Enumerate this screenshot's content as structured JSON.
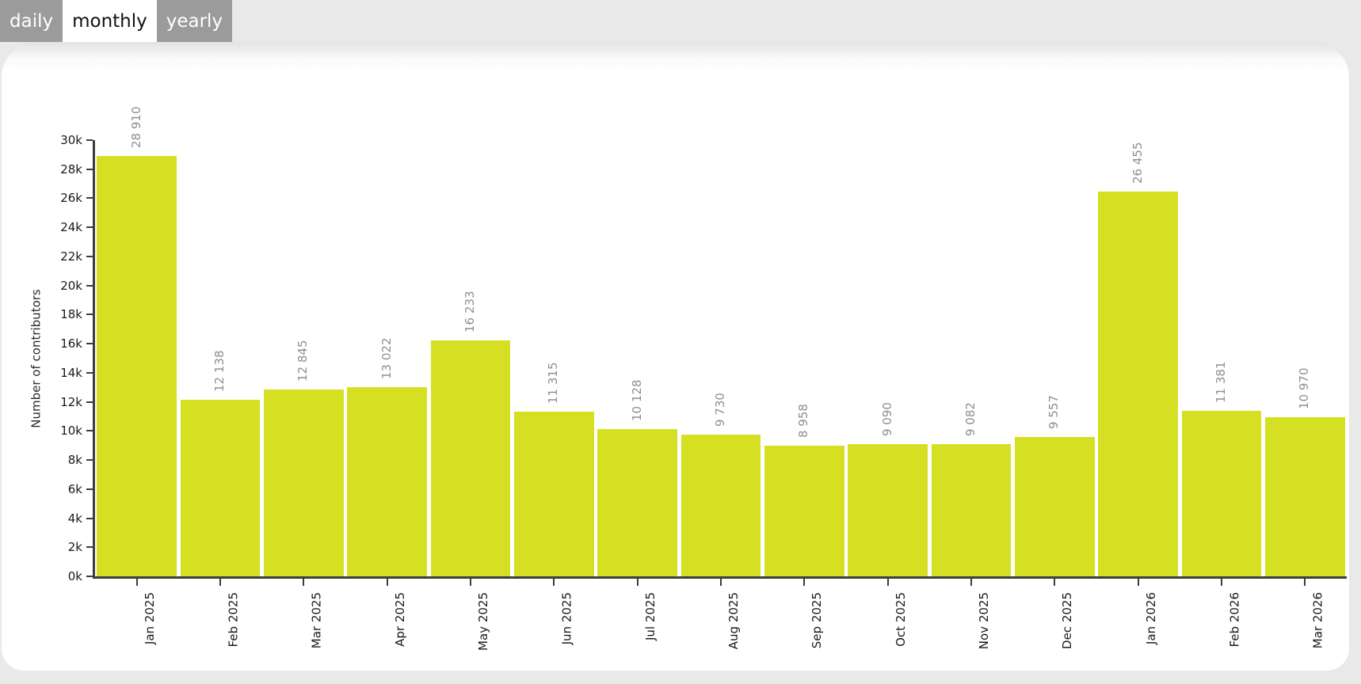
{
  "tabs": {
    "items": [
      {
        "label": "daily",
        "active": false
      },
      {
        "label": "monthly",
        "active": true
      },
      {
        "label": "yearly",
        "active": false
      }
    ]
  },
  "chart_data": {
    "type": "bar",
    "title": "",
    "xlabel": "",
    "ylabel": "Number of contributors",
    "ylim": [
      0,
      30000
    ],
    "y_tick_step": 2000,
    "y_tick_labels": [
      "0k",
      "2k",
      "4k",
      "6k",
      "8k",
      "10k",
      "12k",
      "14k",
      "16k",
      "18k",
      "20k",
      "22k",
      "24k",
      "26k",
      "28k",
      "30k"
    ],
    "categories": [
      "Jan 2025",
      "Feb 2025",
      "Mar 2025",
      "Apr 2025",
      "May 2025",
      "Jun 2025",
      "Jul 2025",
      "Aug 2025",
      "Sep 2025",
      "Oct 2025",
      "Nov 2025",
      "Dec 2025",
      "Jan 2026",
      "Feb 2026",
      "Mar 2026"
    ],
    "values": [
      28910,
      12138,
      12845,
      13022,
      16233,
      11315,
      10128,
      9730,
      8958,
      9090,
      9082,
      9557,
      26455,
      11381,
      10970
    ],
    "value_labels": [
      "28 910",
      "12 138",
      "12 845",
      "13 022",
      "16 233",
      "11 315",
      "10 128",
      "9 730",
      "8 958",
      "9 090",
      "9 082",
      "9 557",
      "26 455",
      "11 381",
      "10 970"
    ],
    "grid": false,
    "legend": null,
    "bar_color": "#d6e023",
    "value_label_color": "#8f8f8f",
    "axis_color": "#3d3d3d",
    "tick_label_color": "#1a1a1a"
  },
  "colors": {
    "page_background": "#e9e9e9",
    "card_background": "#ffffff",
    "tab_inactive_background": "#9b9b9b",
    "tab_inactive_text": "#ffffff",
    "tab_active_background": "#ffffff",
    "tab_active_text": "#111111"
  }
}
